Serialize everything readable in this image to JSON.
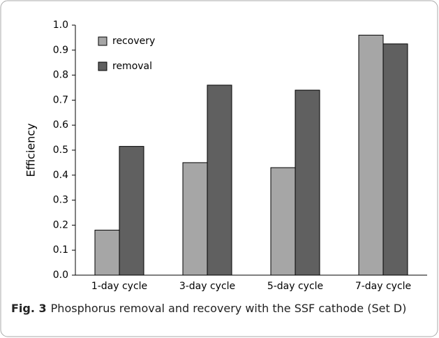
{
  "chart_data": {
    "type": "bar",
    "y_label": "Efficiency",
    "categories": [
      "1-day cycle",
      "3-day cycle",
      "5-day cycle",
      "7-day cycle"
    ],
    "series": [
      {
        "name": "recovery",
        "color": "#a6a6a6",
        "values": [
          0.18,
          0.45,
          0.43,
          0.96
        ]
      },
      {
        "name": "removal",
        "color": "#606060",
        "values": [
          0.515,
          0.76,
          0.74,
          0.925
        ]
      }
    ],
    "ylim": [
      0,
      1
    ],
    "yticks": [
      {
        "value": 0,
        "label": "0.0"
      },
      0.1,
      0.2,
      0.3,
      0.4,
      0.5,
      0.6,
      0.7,
      0.8,
      0.9,
      {
        "value": 1,
        "label": "1.0"
      }
    ],
    "grid": false,
    "legend": "top-left",
    "caption": {
      "label": "Fig. 3",
      "text": "Phosphorus removal and recovery with the SSF cathode (Set D)"
    }
  }
}
